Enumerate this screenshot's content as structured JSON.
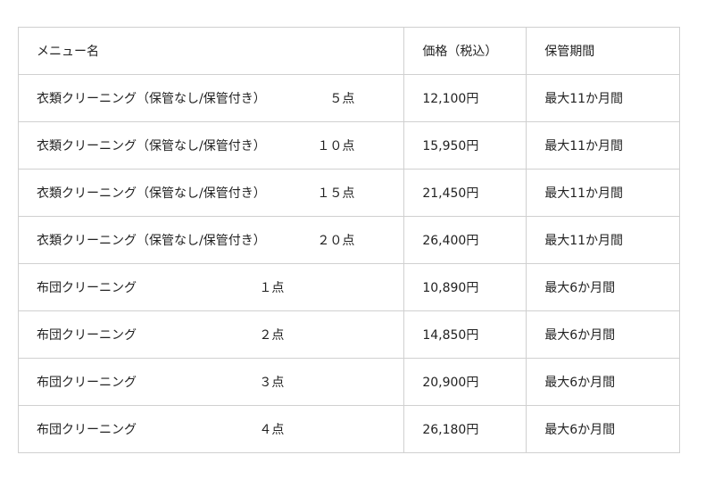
{
  "headers": [
    "メニュー名",
    "価格（税込）",
    "保管期間"
  ],
  "rows": [
    {
      "name": "衣類クリーニング（保管なし/保管付き）",
      "qty": "５点",
      "price": "12,100円",
      "period": "最大11か月間",
      "kind": "cloth"
    },
    {
      "name": "衣類クリーニング（保管なし/保管付き）",
      "qty": "１０点",
      "price": "15,950円",
      "period": "最大11か月間",
      "kind": "cloth"
    },
    {
      "name": "衣類クリーニング（保管なし/保管付き）",
      "qty": "１５点",
      "price": "21,450円",
      "period": "最大11か月間",
      "kind": "cloth"
    },
    {
      "name": "衣類クリーニング（保管なし/保管付き）",
      "qty": "２０点",
      "price": "26,400円",
      "period": "最大11か月間",
      "kind": "cloth"
    },
    {
      "name": "布団クリーニング",
      "qty": "１点",
      "price": "10,890円",
      "period": "最大6か月間",
      "kind": "futon"
    },
    {
      "name": "布団クリーニング",
      "qty": "２点",
      "price": "14,850円",
      "period": "最大6か月間",
      "kind": "futon"
    },
    {
      "name": "布団クリーニング",
      "qty": "３点",
      "price": "20,900円",
      "period": "最大6か月間",
      "kind": "futon"
    },
    {
      "name": "布団クリーニング",
      "qty": "４点",
      "price": "26,180円",
      "period": "最大6か月間",
      "kind": "futon"
    }
  ]
}
